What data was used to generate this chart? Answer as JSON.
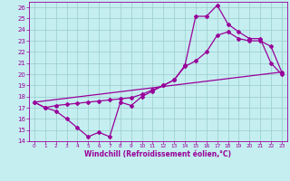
{
  "title": "",
  "xlabel": "Windchill (Refroidissement éolien,°C)",
  "xlim": [
    -0.5,
    23.5
  ],
  "ylim": [
    14,
    26.5
  ],
  "x_ticks": [
    0,
    1,
    2,
    3,
    4,
    5,
    6,
    7,
    8,
    9,
    10,
    11,
    12,
    13,
    14,
    15,
    16,
    17,
    18,
    19,
    20,
    21,
    22,
    23
  ],
  "y_ticks": [
    14,
    15,
    16,
    17,
    18,
    19,
    20,
    21,
    22,
    23,
    24,
    25,
    26
  ],
  "bg_color": "#c5eef0",
  "line_color": "#990099",
  "grid_color": "#99cccc",
  "line1_x": [
    0,
    1,
    2,
    3,
    4,
    5,
    6,
    7,
    8,
    9,
    10,
    11,
    12,
    13,
    14,
    15,
    16,
    17,
    18,
    19,
    20,
    21,
    22,
    23
  ],
  "line1_y": [
    17.5,
    17.0,
    16.7,
    16.0,
    15.2,
    14.4,
    14.8,
    14.4,
    17.5,
    17.2,
    18.0,
    18.5,
    19.0,
    19.5,
    20.8,
    25.2,
    25.2,
    26.2,
    24.5,
    23.8,
    23.2,
    23.2,
    21.0,
    20.0
  ],
  "line2_x": [
    0,
    1,
    2,
    3,
    4,
    5,
    6,
    7,
    8,
    9,
    10,
    11,
    12,
    13,
    14,
    15,
    16,
    17,
    18,
    19,
    20,
    21,
    22,
    23
  ],
  "line2_y": [
    17.5,
    17.0,
    17.2,
    17.3,
    17.4,
    17.5,
    17.6,
    17.7,
    17.8,
    17.9,
    18.2,
    18.6,
    19.0,
    19.5,
    20.7,
    21.2,
    22.0,
    23.5,
    23.8,
    23.2,
    23.0,
    23.0,
    22.5,
    20.2
  ],
  "line3_x": [
    0,
    23
  ],
  "line3_y": [
    17.5,
    20.2
  ]
}
